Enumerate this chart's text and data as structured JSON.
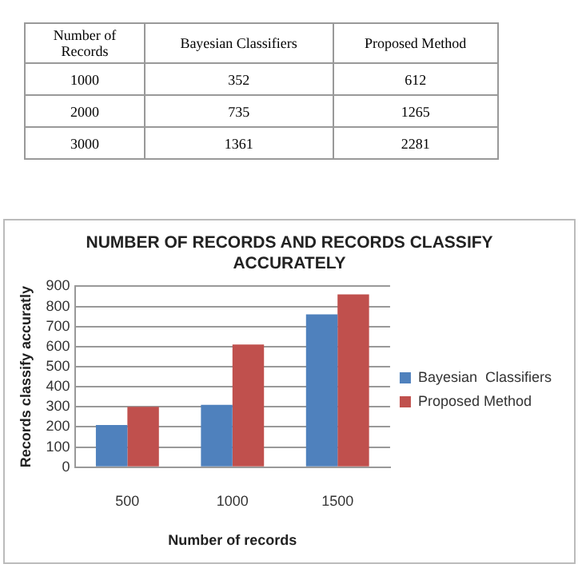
{
  "chart_data": [
    {
      "type": "other",
      "xlabel": "Number of Records",
      "data_labels": true,
      "categories": [
        "1000",
        "2000",
        "3000"
      ],
      "series": [
        {
          "name": "Bayesian  Classifiers",
          "values": [
            352,
            735,
            1361
          ]
        },
        {
          "name": "Proposed Method",
          "values": [
            612,
            1265,
            2281
          ]
        }
      ]
    },
    {
      "type": "bar",
      "title": "NUMBER OF RECORDS AND RECORDS CLASSIFY ACCURATELY",
      "xlabel": "Number of records",
      "ylabel": "Records classify accuratly",
      "categories": [
        "500",
        "1000",
        "1500"
      ],
      "series": [
        {
          "name": "Bayesian  Classifiers",
          "color": "#4f81bd",
          "values": [
            210,
            310,
            760
          ]
        },
        {
          "name": "Proposed Method",
          "color": "#c0504d",
          "values": [
            300,
            610,
            860
          ]
        }
      ],
      "ylim": [
        0,
        900
      ],
      "yticks": [
        0,
        100,
        200,
        300,
        400,
        500,
        600,
        700,
        800,
        900
      ],
      "grid": "y",
      "legend": "right"
    }
  ]
}
